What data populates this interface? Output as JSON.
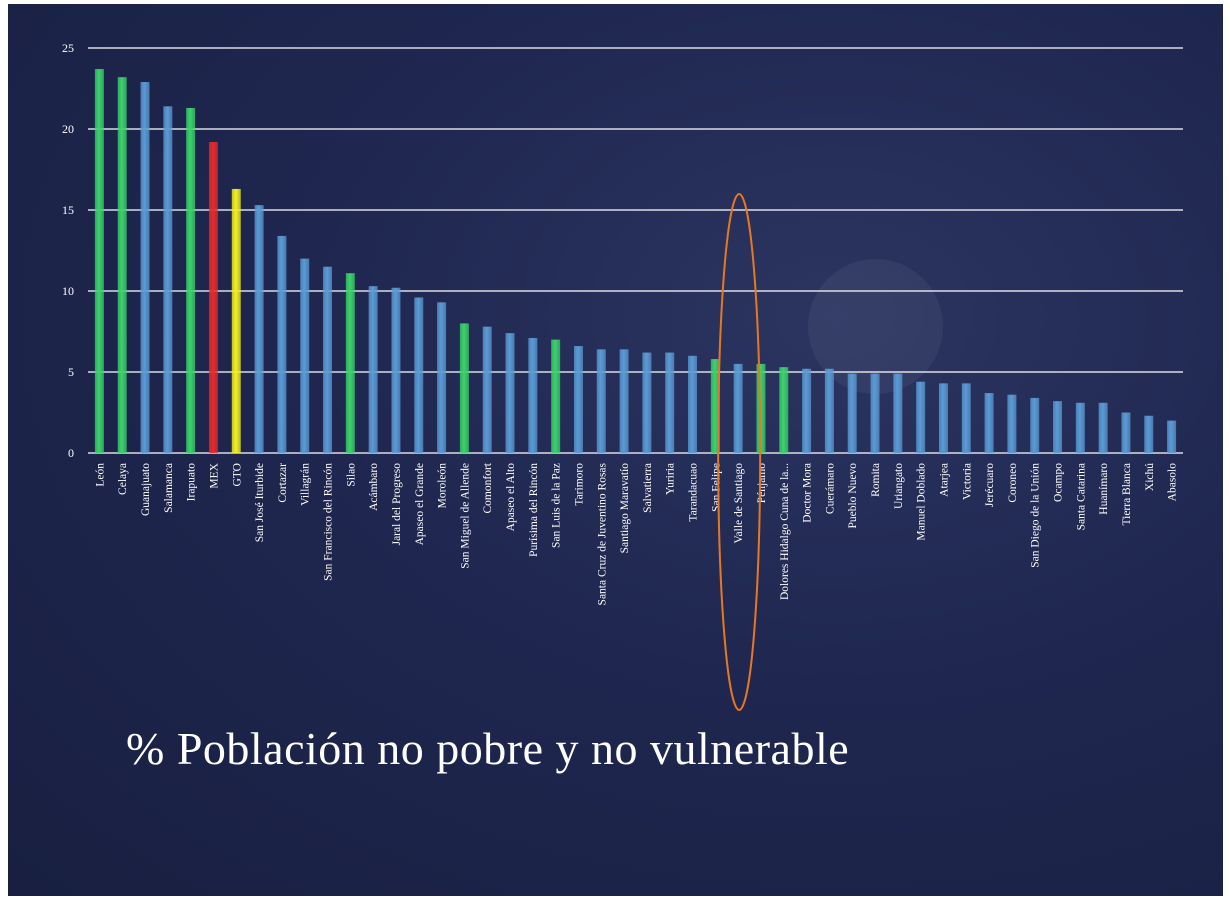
{
  "slide": {
    "title": "% Población no pobre y no vulnerable"
  },
  "chart_data": {
    "type": "bar",
    "title": "",
    "xlabel": "",
    "ylabel": "",
    "ylim": [
      0,
      25
    ],
    "yticks": [
      0,
      5,
      10,
      15,
      20,
      25
    ],
    "grid": true,
    "legend": "none",
    "categories": [
      "León",
      "Celaya",
      "Guanajuato",
      "Salamanca",
      "Irapuato",
      "MEX",
      "GTO",
      "San José Iturbide",
      "Cortazar",
      "Villagrán",
      "San Francisco del Rincón",
      "Silao",
      "Acámbaro",
      "Jaral del Progreso",
      "Apaseo el Grande",
      "Moroleón",
      "San Miguel de Allende",
      "Comonfort",
      "Apaseo el Alto",
      "Purísima del Rincón",
      "San Luis de la Paz",
      "Tarimoro",
      "Santa Cruz de Juventino Rosas",
      "Santiago Maravatío",
      "Salvatierra",
      "Yuriria",
      "Tarandacuao",
      "San Felipe",
      "Valle de Santiago",
      "Pénjamo",
      "Dolores Hidalgo Cuna de la...",
      "Doctor Mora",
      "Cuerámaro",
      "Pueblo Nuevo",
      "Romita",
      "Uriangato",
      "Manuel Doblado",
      "Atarjea",
      "Victoria",
      "Jerécuaro",
      "Coroneo",
      "San Diego de la Unión",
      "Ocampo",
      "Santa Catarina",
      "Huanímaro",
      "Tierra Blanca",
      "Xichú",
      "Abasolo"
    ],
    "values": [
      23.7,
      23.2,
      22.9,
      21.4,
      21.3,
      19.2,
      16.3,
      15.3,
      13.4,
      12.0,
      11.5,
      11.1,
      10.3,
      10.2,
      9.6,
      9.3,
      8.0,
      7.8,
      7.4,
      7.1,
      7.0,
      6.6,
      6.4,
      6.4,
      6.2,
      6.2,
      6.0,
      5.8,
      5.5,
      5.5,
      5.3,
      5.2,
      5.2,
      4.9,
      4.9,
      4.9,
      4.4,
      4.3,
      4.3,
      3.7,
      3.6,
      3.4,
      3.2,
      3.1,
      3.1,
      2.5,
      2.3,
      2.0
    ],
    "bar_colors": [
      "#3ad46a",
      "#3ad46a",
      "#5b9bd5",
      "#5b9bd5",
      "#3ad46a",
      "#e82a2a",
      "#f5f01e",
      "#5b9bd5",
      "#5b9bd5",
      "#5b9bd5",
      "#5b9bd5",
      "#3ad46a",
      "#5b9bd5",
      "#5b9bd5",
      "#5b9bd5",
      "#5b9bd5",
      "#3ad46a",
      "#5b9bd5",
      "#5b9bd5",
      "#5b9bd5",
      "#3ad46a",
      "#5b9bd5",
      "#5b9bd5",
      "#5b9bd5",
      "#5b9bd5",
      "#5b9bd5",
      "#5b9bd5",
      "#3ad46a",
      "#5b9bd5",
      "#3ad46a",
      "#3ad46a",
      "#5b9bd5",
      "#5b9bd5",
      "#5b9bd5",
      "#5b9bd5",
      "#5b9bd5",
      "#5b9bd5",
      "#5b9bd5",
      "#5b9bd5",
      "#5b9bd5",
      "#5b9bd5",
      "#5b9bd5",
      "#5b9bd5",
      "#5b9bd5",
      "#5b9bd5",
      "#5b9bd5",
      "#5b9bd5",
      "#5b9bd5"
    ],
    "highlight": {
      "category": "Valle de Santiago",
      "shape": "ellipse",
      "color": "#e87722"
    },
    "colors": {
      "background": "#1f2750",
      "gridline": "#ffffff",
      "text": "#ffffff"
    }
  }
}
